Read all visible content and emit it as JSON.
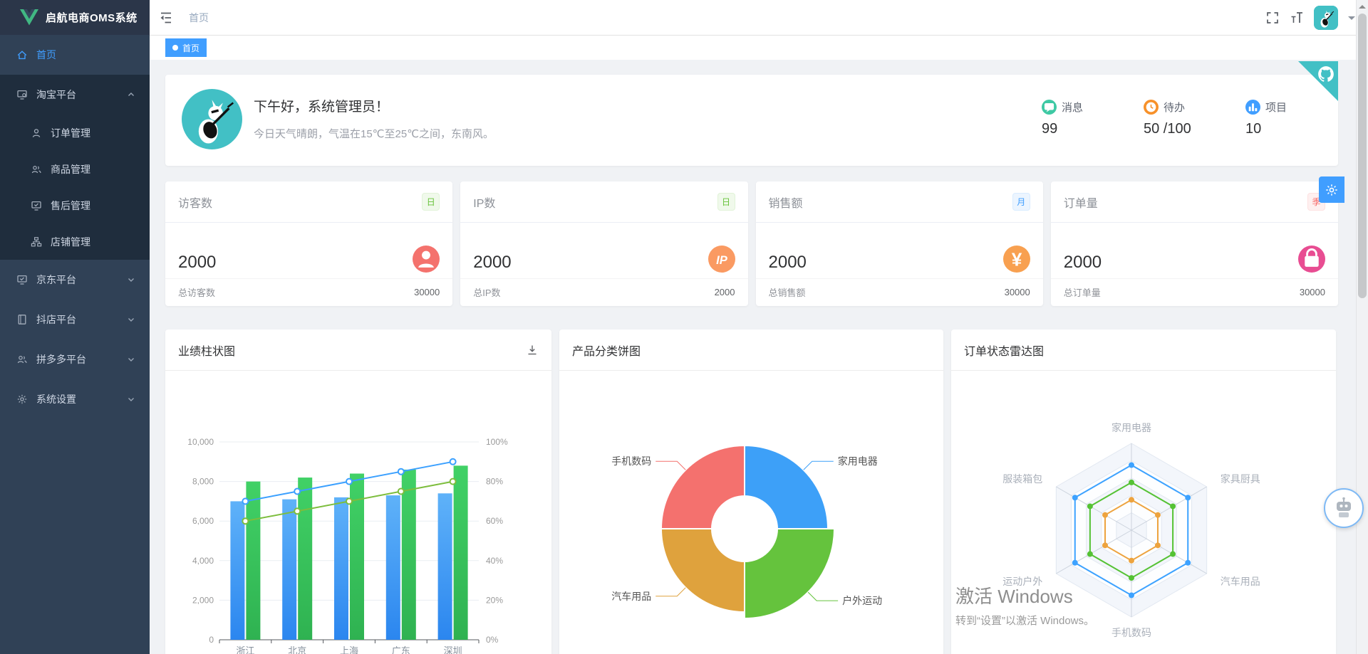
{
  "app": {
    "title": "启航电商OMS系统"
  },
  "header": {
    "breadcrumb": "首页",
    "font_size_icon": "тT"
  },
  "tags": [
    {
      "label": "首页",
      "active": true
    }
  ],
  "sidebar": {
    "items": [
      {
        "key": "home",
        "label": "首页",
        "icon": "home",
        "active": true
      },
      {
        "key": "taobao-platform",
        "label": "淘宝平台",
        "icon": "platform",
        "expanded": true,
        "children": [
          {
            "key": "order-mgmt",
            "label": "订单管理",
            "icon": "user"
          },
          {
            "key": "product-mgmt",
            "label": "商品管理",
            "icon": "peoples"
          },
          {
            "key": "aftersale-mgmt",
            "label": "售后管理",
            "icon": "monitor-check"
          },
          {
            "key": "shop-mgmt",
            "label": "店铺管理",
            "icon": "tree"
          }
        ]
      },
      {
        "key": "jd-platform",
        "label": "京东平台",
        "icon": "monitor-check",
        "collapsed": true
      },
      {
        "key": "douyin-platform",
        "label": "抖店平台",
        "icon": "notebook",
        "collapsed": true
      },
      {
        "key": "pdd-platform",
        "label": "拼多多平台",
        "icon": "peoples",
        "collapsed": true
      },
      {
        "key": "system-settings",
        "label": "系统设置",
        "icon": "gear",
        "collapsed": true
      }
    ]
  },
  "welcome": {
    "greeting": "下午好，系统管理员！",
    "weather": "今日天气晴朗，气温在15℃至25℃之间，东南风。",
    "stats": [
      {
        "key": "message",
        "label": "消息",
        "value": "99",
        "color": "#3ec9a4"
      },
      {
        "key": "todo",
        "label": "待办",
        "value": "50 /100",
        "color": "#f7912a"
      },
      {
        "key": "project",
        "label": "项目",
        "value": "10",
        "color": "#409eff"
      }
    ]
  },
  "stat_cards": [
    {
      "key": "visitors",
      "title": "访客数",
      "badge": "日",
      "badge_type": "green",
      "value": "2000",
      "icon": "person",
      "icon_color": "#f4726d",
      "footer_label": "总访客数",
      "footer_value": "30000"
    },
    {
      "key": "ip",
      "title": "IP数",
      "badge": "日",
      "badge_type": "green",
      "value": "2000",
      "icon": "ip",
      "icon_color": "#fa9a62",
      "footer_label": "总IP数",
      "footer_value": "2000"
    },
    {
      "key": "sales",
      "title": "销售额",
      "badge": "月",
      "badge_type": "blue",
      "value": "2000",
      "icon": "money",
      "icon_color": "#f8a050",
      "footer_label": "总销售额",
      "footer_value": "30000"
    },
    {
      "key": "orders",
      "title": "订单量",
      "badge": "季",
      "badge_type": "red",
      "value": "2000",
      "icon": "bag",
      "icon_color": "#e84d92",
      "footer_label": "总订单量",
      "footer_value": "30000"
    }
  ],
  "chart_data": [
    {
      "type": "bar",
      "title": "业绩柱状图",
      "categories": [
        "浙江",
        "北京",
        "上海",
        "广东",
        "深圳"
      ],
      "series": [
        {
          "name": "bar-blue",
          "type": "bar",
          "axis": "left",
          "values": [
            7000,
            7100,
            7200,
            7300,
            7400
          ],
          "color_top": "#5fb2f9",
          "color_bottom": "#2b86ef"
        },
        {
          "name": "bar-green",
          "type": "bar",
          "axis": "left",
          "values": [
            8000,
            8200,
            8400,
            8600,
            8800
          ],
          "color_top": "#41d166",
          "color_bottom": "#2fb251"
        },
        {
          "name": "line-blue",
          "type": "line",
          "axis": "right",
          "values": [
            70,
            75,
            80,
            85,
            90
          ],
          "color": "#3ba0ff"
        },
        {
          "name": "line-green",
          "type": "line",
          "axis": "right",
          "values": [
            60,
            65,
            70,
            75,
            80
          ],
          "color": "#7dbd3d"
        }
      ],
      "y_left": {
        "min": 0,
        "max": 10000,
        "ticks": [
          "0",
          "2,000",
          "4,000",
          "6,000",
          "8,000",
          "10,000"
        ]
      },
      "y_right": {
        "min": 0,
        "max": 100,
        "ticks": [
          "0%",
          "20%",
          "40%",
          "60%",
          "80%",
          "100%"
        ]
      },
      "grid": true,
      "legend": "none"
    },
    {
      "type": "pie",
      "title": "产品分类饼图",
      "donut": true,
      "slices": [
        {
          "label": "家用电器",
          "value": 25,
          "color": "#3da0f8"
        },
        {
          "label": "户外运动",
          "value": 25,
          "color": "#65c33d",
          "emphasis": true
        },
        {
          "label": "汽车用品",
          "value": 25,
          "color": "#dfa23d"
        },
        {
          "label": "手机数码",
          "value": 25,
          "color": "#f4716e"
        }
      ]
    },
    {
      "type": "radar",
      "title": "订单状态雷达图",
      "indicators": [
        "家用电器",
        "家具厨具",
        "汽车用品",
        "手机数码",
        "运动户外",
        "服装箱包"
      ],
      "max": 100,
      "series": [
        {
          "color": "#3da2ff",
          "value": 75
        },
        {
          "color": "#55c234",
          "value": 55
        },
        {
          "color": "#eda33e",
          "value": 35
        }
      ]
    }
  ],
  "watermark": {
    "line1": "激活 Windows",
    "line2": "转到“设置”以激活 Windows。"
  }
}
